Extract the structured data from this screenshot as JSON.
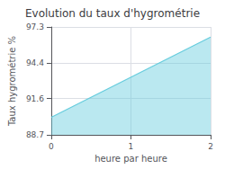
{
  "chart_data": {
    "type": "line",
    "title": "Evolution du taux d'hygrométrie",
    "xlabel": "heure par heure",
    "ylabel": "Taux hygrométrie %",
    "x": [
      0,
      2
    ],
    "series": [
      {
        "name": "Taux hygrométrie %",
        "color": "#66ccdd",
        "values": [
          90.1,
          96.5
        ]
      }
    ],
    "xlim": [
      0,
      2
    ],
    "xticks": [
      0,
      1,
      2
    ],
    "ylim": [
      88.7,
      97.3
    ],
    "yticks": [
      88.7,
      91.6,
      94.4,
      97.3
    ],
    "grid": true
  }
}
